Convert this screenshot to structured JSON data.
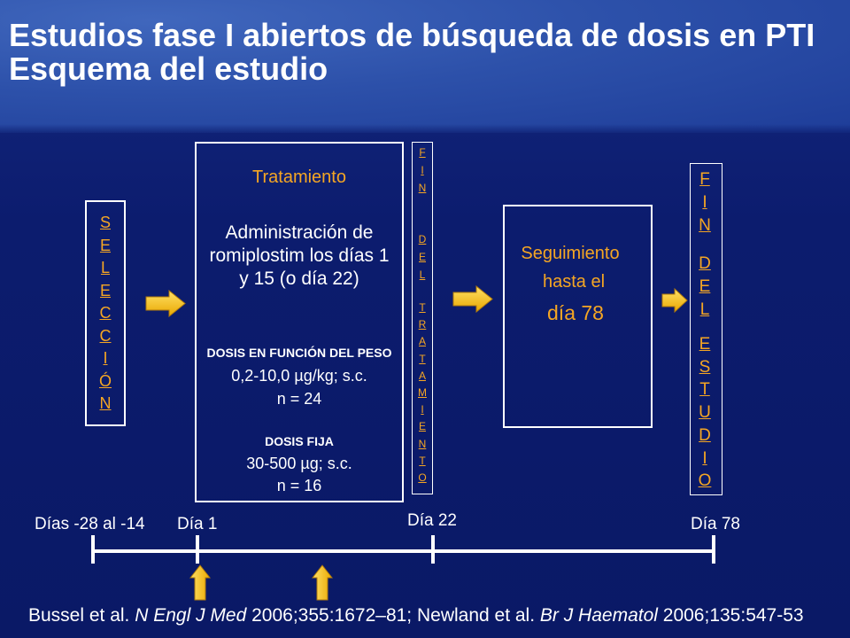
{
  "title": {
    "line1": "Estudios fase I abiertos de búsqueda de dosis en PTI",
    "line2": "Esquema del estudio"
  },
  "selection": {
    "word": "SELECCIÓN"
  },
  "treatment": {
    "heading": "Tratamiento",
    "administration": [
      "Administración de",
      "romiplostim los días 1",
      "y 15 (o día 22)"
    ],
    "weight_based": {
      "label": "DOSIS EN FUNCIÓN DEL PESO",
      "dose": "0,2-10,0 µg/kg; s.c.",
      "n": "n = 24"
    },
    "fixed": {
      "label": "DOSIS FIJA",
      "dose": "30-500 µg; s.c.",
      "n": "n = 16"
    }
  },
  "end_of_treatment": {
    "words": [
      "FIN",
      "DEL",
      "TRATAMIENTO"
    ]
  },
  "follow_up": {
    "line1": "Seguimiento",
    "line2": "hasta el",
    "line3": "día 78"
  },
  "end_of_study": {
    "words": [
      "FIN",
      "DEL",
      "ESTUDIO"
    ]
  },
  "timeline": {
    "screening": "Días -28 al -14",
    "day1": "Día 1",
    "day22": "Día 22",
    "day78": "Día 78"
  },
  "citation": {
    "authors1": "Bussel et al. ",
    "journal1": "N Engl J Med",
    "ref1": " 2006;355:1672–81; Newland et al. ",
    "journal2": "Br J Haematol",
    "ref2": " 2006;135:547-53"
  },
  "icons": {
    "step_arrow": "right-arrow-icon",
    "dosing_arrow": "up-arrow-icon"
  },
  "colors": {
    "accent": "#f5a623",
    "background": "#0b1a6a",
    "header": "#2d51aa",
    "arrow_light": "#ffe066",
    "arrow_dark": "#e9a800",
    "arrow_stroke": "#b07a0c"
  }
}
